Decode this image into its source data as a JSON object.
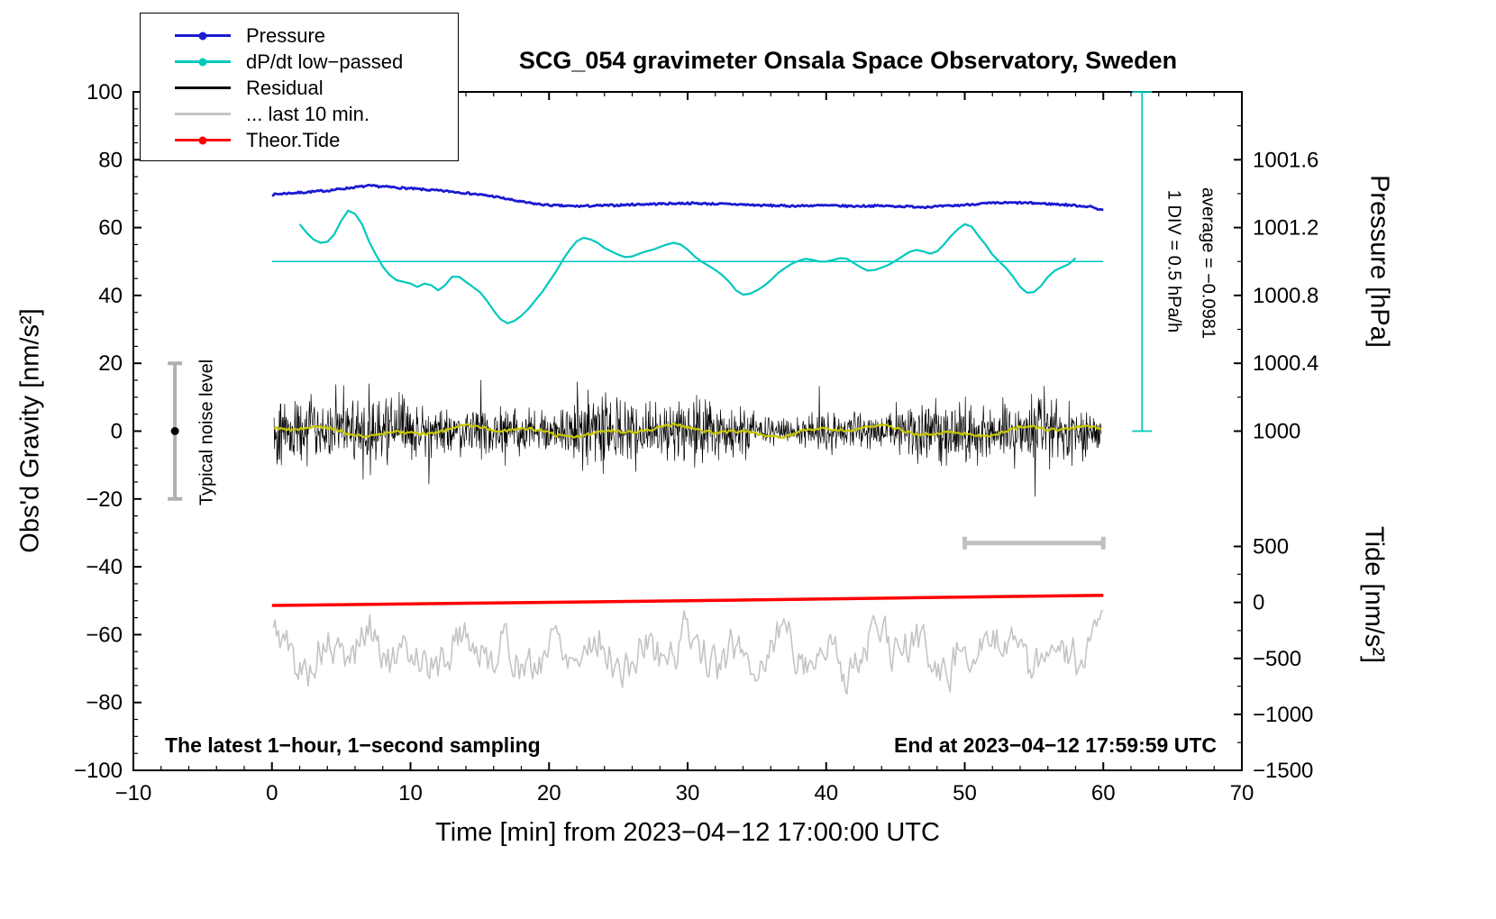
{
  "header": {
    "title": "SCG_054 gravimeter Onsala Space Observatory, Sweden"
  },
  "footer": {
    "left": "The latest 1−hour, 1−second sampling",
    "right": "End at 2023−04−12 17:59:59 UTC"
  },
  "annotations": {
    "div_scale": "1 DIV = 0.5 hPa/h",
    "average": "average = −0.0981",
    "noise_label": "Typical noise level"
  },
  "legend": [
    {
      "label": "Pressure",
      "color": "#1b1bd2",
      "marker": "dot"
    },
    {
      "label": "dP/dt low−passed",
      "color": "#00c8be",
      "marker": "dot"
    },
    {
      "label": "Residual",
      "color": "#000000",
      "marker": "line"
    },
    {
      "label": "... last 10 min.",
      "color": "#c4c4c4",
      "marker": "line"
    },
    {
      "label": "Theor.Tide",
      "color": "#ff0000",
      "marker": "dot"
    }
  ],
  "chart_data": {
    "type": "line",
    "title": "SCG_054 gravimeter Onsala Space Observatory, Sweden",
    "xlabel": "Time [min] from 2023−04−12 17:00:00 UTC",
    "ylabel": "Obs'd Gravity [nm/s²]",
    "xlim": [
      -10,
      70
    ],
    "ylim": [
      -100,
      100
    ],
    "axes": {
      "x": {
        "label": "Time [min] from 2023−04−12 17:00:00 UTC",
        "min": -10,
        "max": 70,
        "major_step": 10,
        "minor_step": 2,
        "tick_labels": [
          "−10",
          "0",
          "10",
          "20",
          "30",
          "40",
          "50",
          "60",
          "70"
        ]
      },
      "y_left": {
        "label": "Obs'd Gravity [nm/s²]",
        "min": -100,
        "max": 100,
        "major_step": 20,
        "minor_step": 5,
        "tick_labels": [
          "−100",
          "−80",
          "−60",
          "−40",
          "−20",
          "0",
          "20",
          "40",
          "60",
          "80",
          "100"
        ]
      },
      "pressure": {
        "label": "Pressure [hPa]",
        "ticks": [
          {
            "g": 80,
            "label": "1001.6"
          },
          {
            "g": 60,
            "label": "1001.2"
          },
          {
            "g": 40,
            "label": "1000.8"
          },
          {
            "g": 20,
            "label": "1000.4"
          },
          {
            "g": 0,
            "label": "1000"
          }
        ],
        "minor_g": [
          90,
          70,
          50,
          30,
          10
        ]
      },
      "tide": {
        "label": "Tide [nm/s²]",
        "ticks": [
          {
            "g": -34,
            "label": "500"
          },
          {
            "g": -50.5,
            "label": "0"
          },
          {
            "g": -67,
            "label": "−500"
          },
          {
            "g": -83.5,
            "label": "−1000"
          },
          {
            "g": -100,
            "label": "−1500"
          }
        ],
        "minor_g": [
          -42.2,
          -58.8,
          -75.2,
          -91.8
        ]
      }
    },
    "series": [
      {
        "name": "pressure",
        "legend": "Pressure",
        "color": "#1b1bd2",
        "width": 2.8,
        "render": "jitter-line",
        "jitter": 0.28,
        "step": 0.1,
        "seed": 7,
        "points": [
          [
            0,
            69.7
          ],
          [
            1,
            70.1
          ],
          [
            2,
            70.3
          ],
          [
            3,
            70.6
          ],
          [
            4,
            70.9
          ],
          [
            5,
            71.4
          ],
          [
            6,
            71.9
          ],
          [
            7,
            72.3
          ],
          [
            8,
            72.1
          ],
          [
            9,
            71.8
          ],
          [
            10,
            71.5
          ],
          [
            11,
            71.2
          ],
          [
            12,
            70.9
          ],
          [
            13,
            70.6
          ],
          [
            14,
            70.2
          ],
          [
            15,
            69.7
          ],
          [
            16,
            69.2
          ],
          [
            17,
            68.4
          ],
          [
            18,
            67.6
          ],
          [
            19,
            67.0
          ],
          [
            20,
            66.6
          ],
          [
            21,
            66.4
          ],
          [
            22,
            66.3
          ],
          [
            23,
            66.4
          ],
          [
            24,
            66.5
          ],
          [
            25,
            66.6
          ],
          [
            26,
            66.8
          ],
          [
            27,
            66.9
          ],
          [
            28,
            67.0
          ],
          [
            29,
            67.1
          ],
          [
            30,
            67.2
          ],
          [
            31,
            67.1
          ],
          [
            32,
            67.0
          ],
          [
            33,
            66.9
          ],
          [
            34,
            66.8
          ],
          [
            35,
            66.6
          ],
          [
            36,
            66.5
          ],
          [
            37,
            66.4
          ],
          [
            38,
            66.4
          ],
          [
            39,
            66.5
          ],
          [
            40,
            66.5
          ],
          [
            41,
            66.4
          ],
          [
            42,
            66.3
          ],
          [
            43,
            66.4
          ],
          [
            44,
            66.4
          ],
          [
            45,
            66.3
          ],
          [
            46,
            66.2
          ],
          [
            47,
            66.1
          ],
          [
            48,
            66.2
          ],
          [
            49,
            66.4
          ],
          [
            50,
            66.7
          ],
          [
            51,
            67.0
          ],
          [
            52,
            67.2
          ],
          [
            53,
            67.3
          ],
          [
            54,
            67.3
          ],
          [
            55,
            67.2
          ],
          [
            56,
            67.0
          ],
          [
            57,
            66.8
          ],
          [
            58,
            66.5
          ],
          [
            59,
            66.2
          ],
          [
            60,
            65.1
          ]
        ]
      },
      {
        "name": "dpdt-zero-line",
        "legend": "",
        "color": "#00c8be",
        "width": 1.5,
        "render": "line",
        "points": [
          [
            0,
            50
          ],
          [
            60,
            50
          ]
        ]
      },
      {
        "name": "dpdt-lowpassed",
        "legend": "dP/dt low−passed",
        "color": "#00c8be",
        "width": 2.2,
        "render": "line",
        "points": [
          [
            2,
            61
          ],
          [
            2.5,
            58.5
          ],
          [
            3,
            56.5
          ],
          [
            3.5,
            55.5
          ],
          [
            4,
            55.8
          ],
          [
            4.5,
            58
          ],
          [
            5,
            62
          ],
          [
            5.5,
            65
          ],
          [
            6,
            64
          ],
          [
            6.5,
            61
          ],
          [
            7,
            56
          ],
          [
            7.5,
            52
          ],
          [
            8,
            48.5
          ],
          [
            8.5,
            46
          ],
          [
            9,
            44.5
          ],
          [
            9.5,
            44
          ],
          [
            10,
            43.5
          ],
          [
            10.5,
            42.5
          ],
          [
            11,
            43.5
          ],
          [
            11.5,
            43
          ],
          [
            12,
            41.5
          ],
          [
            12.5,
            43
          ],
          [
            13,
            45.5
          ],
          [
            13.5,
            45.5
          ],
          [
            14,
            44
          ],
          [
            14.5,
            42.5
          ],
          [
            15,
            41
          ],
          [
            15.5,
            38.5
          ],
          [
            16,
            35.5
          ],
          [
            16.5,
            33
          ],
          [
            17,
            31.8
          ],
          [
            17.5,
            32.5
          ],
          [
            18,
            34
          ],
          [
            18.5,
            36
          ],
          [
            19,
            38.5
          ],
          [
            19.5,
            41
          ],
          [
            20,
            44
          ],
          [
            20.5,
            47
          ],
          [
            21,
            50.5
          ],
          [
            21.5,
            53.5
          ],
          [
            22,
            56
          ],
          [
            22.5,
            57
          ],
          [
            23,
            56.5
          ],
          [
            23.5,
            55.5
          ],
          [
            24,
            54
          ],
          [
            24.5,
            53
          ],
          [
            25,
            52
          ],
          [
            25.5,
            51.3
          ],
          [
            26,
            51.5
          ],
          [
            26.5,
            52.3
          ],
          [
            27,
            53
          ],
          [
            27.5,
            53.5
          ],
          [
            28,
            54.3
          ],
          [
            28.5,
            55
          ],
          [
            29,
            55.5
          ],
          [
            29.5,
            55
          ],
          [
            30,
            53.5
          ],
          [
            30.5,
            51.5
          ],
          [
            31,
            50
          ],
          [
            31.5,
            48.8
          ],
          [
            32,
            47.5
          ],
          [
            32.5,
            46
          ],
          [
            33,
            44
          ],
          [
            33.5,
            41.5
          ],
          [
            34,
            40.2
          ],
          [
            34.5,
            40.5
          ],
          [
            35,
            41.5
          ],
          [
            35.5,
            42.8
          ],
          [
            36,
            44.5
          ],
          [
            36.5,
            46.5
          ],
          [
            37,
            48
          ],
          [
            37.5,
            49.3
          ],
          [
            38,
            50.2
          ],
          [
            38.5,
            50.8
          ],
          [
            39,
            50.5
          ],
          [
            39.5,
            50
          ],
          [
            40,
            50
          ],
          [
            40.5,
            50.5
          ],
          [
            41,
            51
          ],
          [
            41.5,
            50.8
          ],
          [
            42,
            49.5
          ],
          [
            42.5,
            48.3
          ],
          [
            43,
            47.3
          ],
          [
            43.5,
            47.5
          ],
          [
            44,
            48.2
          ],
          [
            44.5,
            49
          ],
          [
            45,
            50.2
          ],
          [
            45.5,
            51.5
          ],
          [
            46,
            52.8
          ],
          [
            46.5,
            53.4
          ],
          [
            47,
            53
          ],
          [
            47.5,
            52.3
          ],
          [
            48,
            53
          ],
          [
            48.5,
            55
          ],
          [
            49,
            57.5
          ],
          [
            49.5,
            59.5
          ],
          [
            50,
            61
          ],
          [
            50.5,
            60.3
          ],
          [
            51,
            57.5
          ],
          [
            51.5,
            55
          ],
          [
            52,
            52
          ],
          [
            52.5,
            50
          ],
          [
            53,
            48
          ],
          [
            53.5,
            45.5
          ],
          [
            54,
            42.5
          ],
          [
            54.5,
            40.8
          ],
          [
            55,
            41
          ],
          [
            55.5,
            42.8
          ],
          [
            56,
            45.5
          ],
          [
            56.5,
            47.3
          ],
          [
            57,
            48.3
          ],
          [
            57.5,
            49.2
          ],
          [
            58,
            51
          ]
        ]
      },
      {
        "name": "residual",
        "legend": "Residual",
        "color": "#000000",
        "width": 0.7,
        "render": "noise",
        "seed": 42,
        "n": 1700,
        "x0": 0.15,
        "x1": 59.85,
        "base_amp": 8,
        "clamp": 24
      },
      {
        "name": "residual-lowpassed",
        "legend": "",
        "color": "#c8c800",
        "width": 2.2,
        "render": "wave",
        "seed": 9,
        "x0": 0.15,
        "x1": 59.85,
        "step": 0.15
      },
      {
        "name": "last-10-min",
        "legend": "... last 10 min.",
        "color": "#c4c4c4",
        "width": 1.6,
        "render": "rough",
        "seed": 5,
        "x0": 0.1,
        "x1": 60,
        "step": 0.12,
        "center": -65,
        "min": -77.5,
        "max": -53
      },
      {
        "name": "theor-tide",
        "legend": "Theor.Tide",
        "color": "#ff0000",
        "width": 3.5,
        "render": "line",
        "points": [
          [
            0,
            -51.4
          ],
          [
            15,
            -50.7
          ],
          [
            30,
            -50.0
          ],
          [
            45,
            -49.2
          ],
          [
            60,
            -48.4
          ]
        ]
      }
    ],
    "extras": {
      "noise_bar": {
        "x": -7,
        "g_min": -20,
        "g_max": 20,
        "color": "#b0b0b0",
        "dot_color": "#000000"
      },
      "segment_bar": {
        "x_min": 50,
        "x_max": 60,
        "g": -33,
        "color": "#c0c0c0"
      },
      "div_bar": {
        "x": 62.8,
        "g_top": 100,
        "g_bottom": 0,
        "color": "#00c8be"
      }
    }
  }
}
